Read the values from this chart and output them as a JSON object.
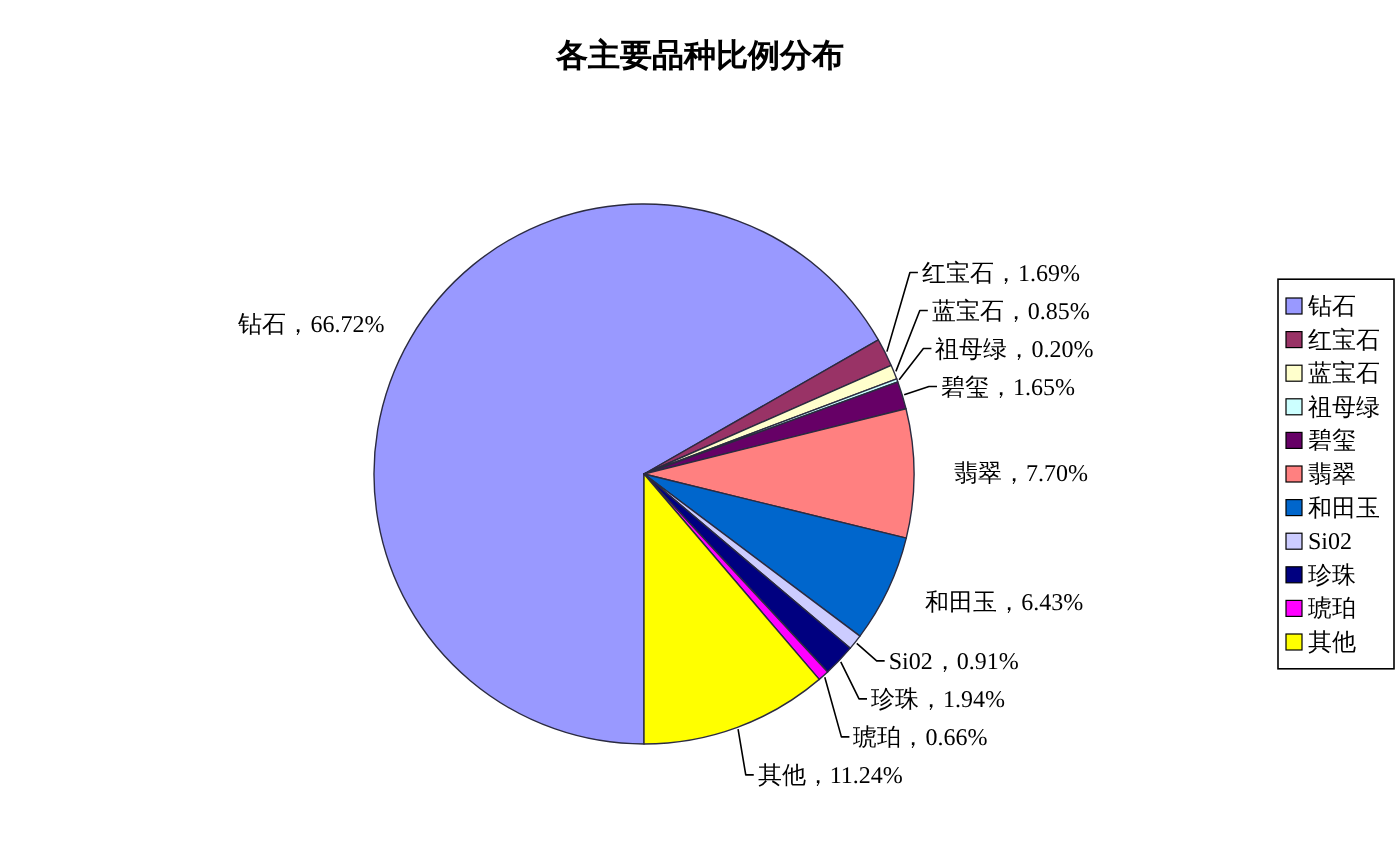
{
  "chart_data": {
    "type": "pie",
    "title": "各主要品种比例分布",
    "categories": [
      "钻石",
      "红宝石",
      "蓝宝石",
      "祖母绿",
      "碧玺",
      "翡翠",
      "和田玉",
      "Si02",
      "珍珠",
      "琥珀",
      "其他"
    ],
    "values": [
      66.72,
      1.69,
      0.85,
      0.2,
      1.65,
      7.7,
      6.43,
      0.91,
      1.94,
      0.66,
      11.24
    ],
    "colors": [
      "#9999ff",
      "#993366",
      "#ffffcc",
      "#ccffff",
      "#660066",
      "#ff8080",
      "#0066cc",
      "#ccccff",
      "#000080",
      "#ff00ff",
      "#ffff00"
    ],
    "value_labels": [
      "钻石，66.72%",
      "红宝石，1.69%",
      "蓝宝石，0.85%",
      "祖母绿，0.20%",
      "碧玺，1.65%",
      "翡翠，7.70%",
      "和田玉，6.43%",
      "Si02，0.91%",
      "珍珠，1.94%",
      "琥珀，0.66%",
      "其他，11.24%"
    ],
    "legend": "right"
  }
}
